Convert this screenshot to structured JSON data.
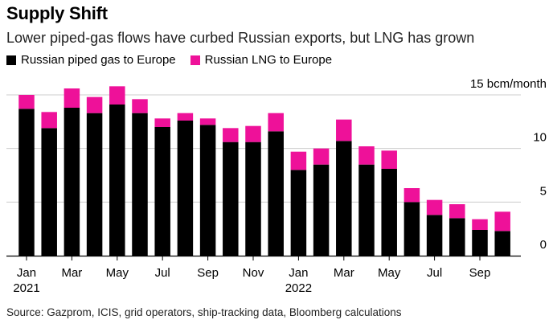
{
  "title": "Supply Shift",
  "subtitle": "Lower piped-gas flows have curbed Russian exports, but LNG has grown",
  "source": "Source: Gazprom, ICIS, grid operators, ship-tracking data, Bloomberg calculations",
  "colors": {
    "piped": "#000000",
    "lng": "#ee1199",
    "grid": "#cccccc",
    "axis": "#000000"
  },
  "chart_data": {
    "type": "bar",
    "stacked": true,
    "ylim": [
      0,
      15
    ],
    "y_unit_label": "15 bcm/month",
    "y_ticks": [
      {
        "value": 15,
        "label": "15 bcm/month"
      },
      {
        "value": 10,
        "label": "10"
      },
      {
        "value": 5,
        "label": "5"
      },
      {
        "value": 0,
        "label": "0"
      }
    ],
    "x": [
      "2021-01",
      "2021-02",
      "2021-03",
      "2021-04",
      "2021-05",
      "2021-06",
      "2021-07",
      "2021-08",
      "2021-09",
      "2021-10",
      "2021-11",
      "2021-12",
      "2022-01",
      "2022-02",
      "2022-03",
      "2022-04",
      "2022-05",
      "2022-06",
      "2022-07",
      "2022-08",
      "2022-09",
      "2022-10"
    ],
    "x_tick_labels": [
      {
        "index": 0,
        "label": "Jan",
        "sublabel": "2021"
      },
      {
        "index": 2,
        "label": "Mar",
        "sublabel": ""
      },
      {
        "index": 4,
        "label": "May",
        "sublabel": ""
      },
      {
        "index": 6,
        "label": "Jul",
        "sublabel": ""
      },
      {
        "index": 8,
        "label": "Sep",
        "sublabel": ""
      },
      {
        "index": 10,
        "label": "Nov",
        "sublabel": ""
      },
      {
        "index": 12,
        "label": "Jan",
        "sublabel": "2022"
      },
      {
        "index": 14,
        "label": "Mar",
        "sublabel": ""
      },
      {
        "index": 16,
        "label": "May",
        "sublabel": ""
      },
      {
        "index": 18,
        "label": "Jul",
        "sublabel": ""
      },
      {
        "index": 20,
        "label": "Sep",
        "sublabel": ""
      }
    ],
    "series": [
      {
        "name": "Russian piped gas to Europe",
        "color": "#000000",
        "values": [
          13.7,
          11.9,
          13.8,
          13.3,
          14.1,
          13.3,
          12.0,
          12.6,
          12.2,
          10.6,
          10.6,
          11.6,
          8.0,
          8.5,
          10.7,
          8.5,
          8.1,
          5.0,
          3.8,
          3.5,
          2.4,
          2.3
        ]
      },
      {
        "name": "Russian LNG to Europe",
        "color": "#ee1199",
        "values": [
          1.3,
          1.5,
          1.8,
          1.5,
          1.7,
          1.3,
          0.8,
          0.7,
          0.6,
          1.3,
          1.5,
          1.7,
          1.7,
          1.5,
          2.0,
          1.7,
          1.7,
          1.3,
          1.4,
          1.3,
          1.0,
          1.8
        ]
      }
    ]
  }
}
